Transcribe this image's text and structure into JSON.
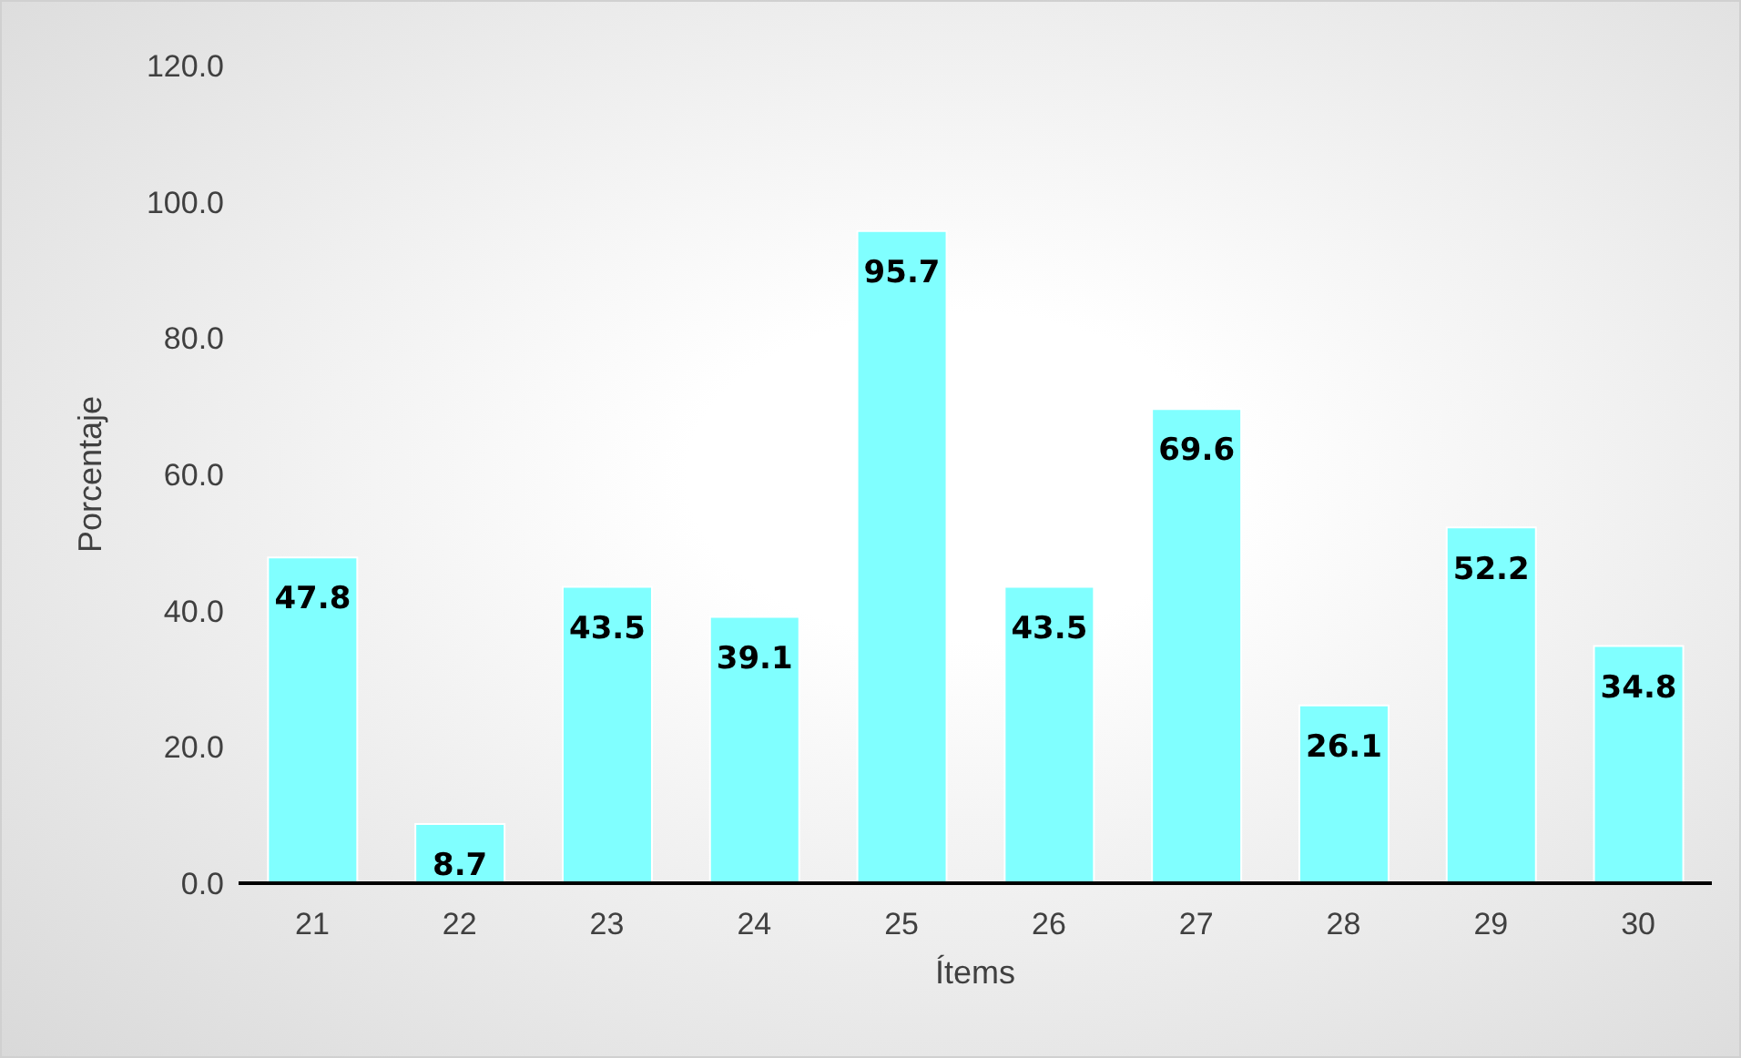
{
  "chart_data": {
    "type": "bar",
    "xlabel": "Ítems",
    "ylabel": "Porcentaje",
    "categories": [
      "21",
      "22",
      "23",
      "24",
      "25",
      "26",
      "27",
      "28",
      "29",
      "30"
    ],
    "values": [
      47.8,
      8.7,
      43.5,
      39.1,
      95.7,
      43.5,
      69.6,
      26.1,
      52.2,
      34.8
    ],
    "color": "#80ffff",
    "ylim": [
      0,
      120
    ],
    "yticks": [
      {
        "value": 0,
        "label": "0.0"
      },
      {
        "value": 20,
        "label": "20.0"
      },
      {
        "value": 40,
        "label": "40.0"
      },
      {
        "value": 60,
        "label": "60.0"
      },
      {
        "value": 80,
        "label": "80.0"
      },
      {
        "value": 100,
        "label": "100.0"
      },
      {
        "value": 120,
        "label": "120.0"
      }
    ],
    "data_labels": true
  }
}
